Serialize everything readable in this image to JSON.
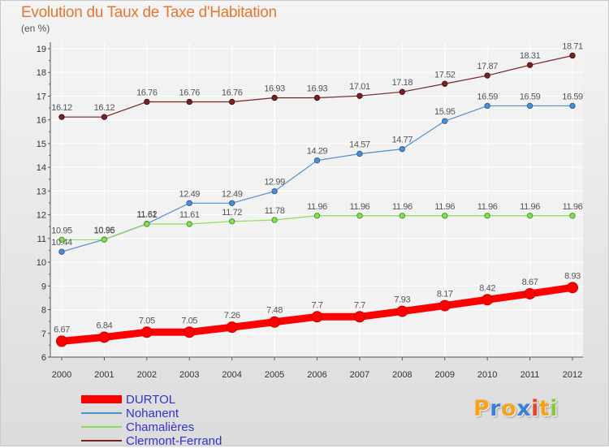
{
  "title": "Evolution du Taux de Taxe d'Habitation",
  "subtitle": "(en %)",
  "chart_data": {
    "type": "line",
    "title": "Evolution du Taux de Taxe d'Habitation",
    "ylabel": "(en %)",
    "xlabel": "",
    "x": [
      2000,
      2001,
      2002,
      2003,
      2004,
      2005,
      2006,
      2007,
      2008,
      2009,
      2010,
      2011,
      2012
    ],
    "ylim": [
      6,
      19
    ],
    "yticks": [
      6,
      7,
      8,
      9,
      10,
      11,
      12,
      13,
      14,
      15,
      16,
      17,
      18,
      19
    ],
    "grid": true,
    "legend_position": "bottom-left",
    "series": [
      {
        "name": "DURTOL",
        "color": "#ff0000",
        "values": [
          6.67,
          6.84,
          7.05,
          7.05,
          7.26,
          7.48,
          7.7,
          7.7,
          7.93,
          8.17,
          8.42,
          8.67,
          8.93
        ],
        "labels": [
          "6.67",
          "6.84",
          "7.05",
          "7.05",
          "7.26",
          "7.48",
          "7.7",
          "7.7",
          "7.93",
          "8.17",
          "8.42",
          "8.67",
          "8.93"
        ]
      },
      {
        "name": "Nohanent",
        "color": "#4f8fd1",
        "values": [
          10.44,
          10.96,
          11.62,
          12.49,
          12.49,
          12.99,
          14.29,
          14.57,
          14.77,
          15.95,
          16.59,
          16.59,
          16.59
        ],
        "labels": [
          "10.44",
          "10.96",
          "11.62",
          "12.49",
          "12.49",
          "12.99",
          "14.29",
          "14.57",
          "14.77",
          "15.95",
          "16.59",
          "16.59",
          "16.59"
        ]
      },
      {
        "name": "Chamalières",
        "color": "#88dd55",
        "values": [
          10.95,
          10.95,
          11.61,
          11.61,
          11.72,
          11.78,
          11.96,
          11.96,
          11.96,
          11.96,
          11.96,
          11.96,
          11.96
        ],
        "labels": [
          "10.95",
          "10.95",
          "11.61",
          "11.61",
          "11.72",
          "11.78",
          "11.96",
          "11.96",
          "11.96",
          "11.96",
          "11.96",
          "11.96",
          "11.96"
        ]
      },
      {
        "name": "Clermont-Ferrand",
        "color": "#7a2222",
        "values": [
          16.12,
          16.12,
          16.76,
          16.76,
          16.76,
          16.93,
          16.93,
          17.01,
          17.18,
          17.52,
          17.87,
          18.31,
          18.71
        ],
        "labels": [
          "16.12",
          "16.12",
          "16.76",
          "16.76",
          "16.76",
          "16.93",
          "16.93",
          "17.01",
          "17.18",
          "17.52",
          "17.87",
          "18.31",
          "18.71"
        ]
      }
    ]
  },
  "legend": [
    {
      "label": "DURTOL",
      "color": "#ff0000"
    },
    {
      "label": "Nohanent",
      "color": "#4f8fd1"
    },
    {
      "label": "Chamalières",
      "color": "#88dd55"
    },
    {
      "label": "Clermont-Ferrand",
      "color": "#7a2222"
    }
  ],
  "logo": {
    "letters": [
      "P",
      "r",
      "o",
      "x",
      "i",
      "t",
      "i"
    ],
    "colors": [
      "#f7a21b",
      "#3b7fd6",
      "#f7a21b",
      "#3b7fd6",
      "#e8442a",
      "#f7a21b",
      "#8bc63f"
    ]
  }
}
